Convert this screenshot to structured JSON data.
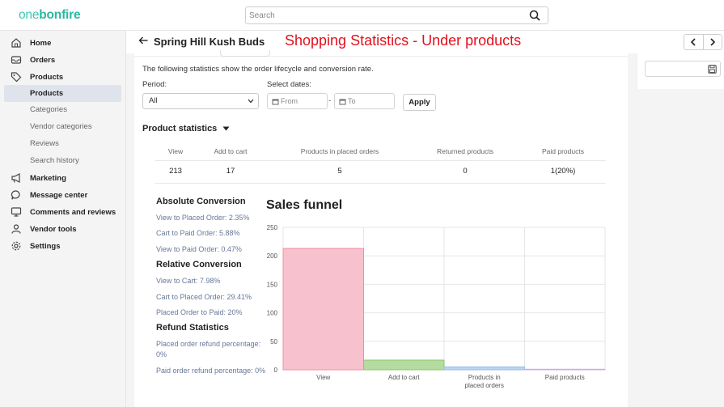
{
  "app": {
    "logo_part1": "one",
    "logo_part2": "bonfire"
  },
  "search": {
    "placeholder": "Search"
  },
  "sidebar": {
    "items": [
      {
        "label": "Home",
        "icon": "home-icon"
      },
      {
        "label": "Orders",
        "icon": "inbox-icon"
      },
      {
        "label": "Products",
        "icon": "tag-icon"
      }
    ],
    "products_sub": [
      "Products",
      "Categories",
      "Vendor categories",
      "Reviews",
      "Search history"
    ],
    "items2": [
      {
        "label": "Marketing",
        "icon": "megaphone-icon"
      },
      {
        "label": "Message center",
        "icon": "chat-icon"
      },
      {
        "label": "Comments and reviews",
        "icon": "monitor-icon"
      },
      {
        "label": "Vendor tools",
        "icon": "user-icon"
      },
      {
        "label": "Settings",
        "icon": "gear-icon"
      }
    ]
  },
  "header": {
    "title": "Spring Hill Kush Buds",
    "overlay_caption": "Shopping Statistics - Under products"
  },
  "filters": {
    "description": "The following statistics show the order lifecycle and conversion rate.",
    "period_label": "Period:",
    "period_value": "All",
    "dates_label": "Select dates:",
    "from_placeholder": "From",
    "to_placeholder": "To",
    "separator": "-",
    "apply_label": "Apply"
  },
  "product_statistics": {
    "title": "Product statistics",
    "headers": [
      "View",
      "Add to cart",
      "Products in placed orders",
      "Returned products",
      "Paid products"
    ],
    "values": [
      "213",
      "17",
      "5",
      "0",
      "1(20%)"
    ]
  },
  "conversion": {
    "absolute_title": "Absolute Conversion",
    "absolute": [
      "View to Placed Order: 2.35%",
      "Cart to Paid Order: 5.88%",
      "View to Paid Order: 0.47%"
    ],
    "relative_title": "Relative Conversion",
    "relative": [
      "View to Cart: 7.98%",
      "Cart to Placed Order: 29.41%",
      "Placed Order to Paid: 20%"
    ],
    "refund_title": "Refund Statistics",
    "refund": [
      "Placed order refund percentage: 0%",
      "Paid order refund percentage: 0%"
    ]
  },
  "colors": {
    "accent": "#2bb79f",
    "caption": "#e3101c"
  },
  "chart_data": {
    "type": "bar",
    "title": "Sales funnel",
    "categories": [
      "View",
      "Add to cart",
      "Products in placed orders",
      "Paid products"
    ],
    "category_lines": [
      [
        "View"
      ],
      [
        "Add to cart"
      ],
      [
        "Products in",
        "placed orders"
      ],
      [
        "Paid products"
      ]
    ],
    "values": [
      213,
      17,
      5,
      1
    ],
    "colors": [
      "#f7c1cd",
      "#b4dba0",
      "#bcd5ee",
      "#e8d9f4"
    ],
    "edge_colors": [
      "#ef8ea2",
      "#86c96a",
      "#93bde6",
      "#c7aee0"
    ],
    "ylim": [
      0,
      250
    ],
    "yticks": [
      0,
      50,
      100,
      150,
      200,
      250
    ],
    "grid": true
  }
}
